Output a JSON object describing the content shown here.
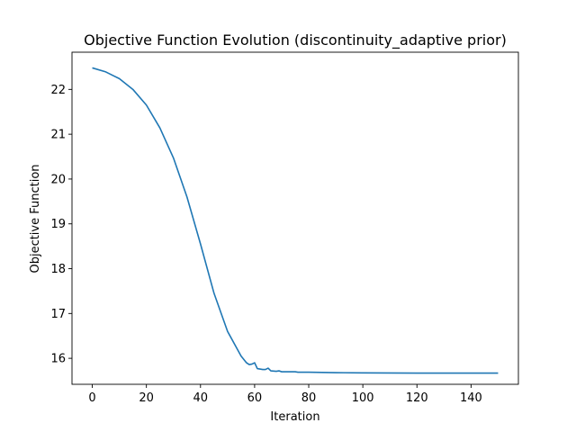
{
  "chart_data": {
    "type": "line",
    "title": "Objective Function Evolution (discontinuity_adaptive prior)",
    "xlabel": "Iteration",
    "ylabel": "Objective Function",
    "xlim": [
      -7.5,
      157.5
    ],
    "ylim": [
      15.42,
      22.83
    ],
    "xticks": [
      0,
      20,
      40,
      60,
      80,
      100,
      120,
      140
    ],
    "yticks": [
      16,
      17,
      18,
      19,
      20,
      21,
      22
    ],
    "grid": false,
    "legend": "none",
    "series": [
      {
        "color": "#1f77b4",
        "points": [
          [
            0,
            22.48
          ],
          [
            5,
            22.39
          ],
          [
            10,
            22.24
          ],
          [
            15,
            22.0
          ],
          [
            20,
            21.65
          ],
          [
            25,
            21.14
          ],
          [
            30,
            20.47
          ],
          [
            35,
            19.6
          ],
          [
            40,
            18.55
          ],
          [
            45,
            17.45
          ],
          [
            50,
            16.6
          ],
          [
            55,
            16.05
          ],
          [
            57,
            15.9
          ],
          [
            58,
            15.86
          ],
          [
            59,
            15.87
          ],
          [
            60,
            15.9
          ],
          [
            61,
            15.77
          ],
          [
            63,
            15.75
          ],
          [
            64,
            15.75
          ],
          [
            65,
            15.78
          ],
          [
            66,
            15.72
          ],
          [
            68,
            15.71
          ],
          [
            69,
            15.72
          ],
          [
            70,
            15.7
          ],
          [
            75,
            15.7
          ],
          [
            76,
            15.69
          ],
          [
            80,
            15.69
          ],
          [
            90,
            15.68
          ],
          [
            100,
            15.675
          ],
          [
            120,
            15.67
          ],
          [
            140,
            15.67
          ],
          [
            150,
            15.67
          ]
        ]
      }
    ]
  }
}
